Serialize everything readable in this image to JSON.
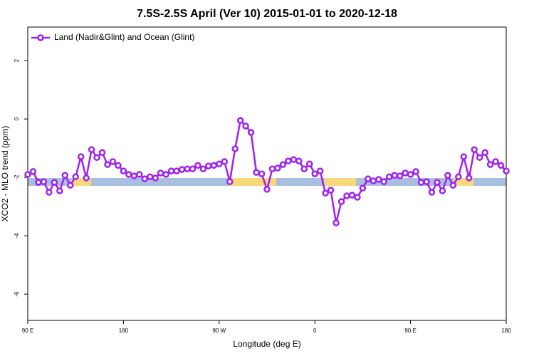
{
  "chart_data": {
    "type": "line",
    "title": "7.5S-2.5S April (Ver 10)   2015-01-01 to 2020-12-18",
    "xlabel": "Longitude (deg E)",
    "ylabel": "XCO2 - MLO trend (ppm)",
    "legend": "top-left",
    "xlim": [
      90,
      540
    ],
    "xticks": [
      {
        "value": 90,
        "label": "90 E"
      },
      180,
      {
        "value": 270,
        "label": "90 W"
      },
      {
        "value": 360,
        "label": "0"
      },
      {
        "value": 450,
        "label": "90 E"
      },
      {
        "value": 540,
        "label": "180"
      }
    ],
    "ylim": [
      -6.9,
      3.15
    ],
    "yticks": [
      2,
      0,
      -2,
      -4,
      -6
    ],
    "x": [
      90,
      95,
      100,
      105,
      110,
      115,
      120,
      125,
      130,
      135,
      140,
      145,
      150,
      155,
      160,
      165,
      170,
      175,
      180,
      185,
      190,
      195,
      200,
      205,
      210,
      215,
      220,
      225,
      230,
      235,
      240,
      245,
      250,
      255,
      260,
      265,
      270,
      275,
      280,
      285,
      290,
      295,
      300,
      305,
      310,
      315,
      320,
      325,
      330,
      335,
      340,
      345,
      350,
      355,
      360,
      365,
      370,
      375,
      380,
      385,
      390,
      395,
      400,
      405,
      410,
      415,
      420,
      425,
      430,
      435,
      440,
      445,
      450,
      455,
      460,
      465,
      470,
      475,
      480,
      485,
      490,
      495,
      500,
      505,
      510,
      515,
      520,
      525,
      530,
      535,
      540
    ],
    "series": [
      {
        "name": "Land (Nadir&Glint) and Ocean (Glint)",
        "color": "#a020f0",
        "values": [
          -1.9,
          -1.8,
          -2.17,
          -2.15,
          -2.51,
          -2.17,
          -2.46,
          -1.93,
          -2.27,
          -1.98,
          -1.29,
          -2.02,
          -1.05,
          -1.32,
          -1.15,
          -1.56,
          -1.46,
          -1.59,
          -1.78,
          -1.9,
          -1.95,
          -1.9,
          -2.05,
          -1.98,
          -2.02,
          -1.85,
          -1.9,
          -1.78,
          -1.78,
          -1.73,
          -1.71,
          -1.71,
          -1.59,
          -1.71,
          -1.61,
          -1.59,
          -1.54,
          -1.46,
          -2.15,
          -1.02,
          -0.05,
          -0.24,
          -0.46,
          -1.83,
          -1.88,
          -2.41,
          -1.71,
          -1.68,
          -1.56,
          -1.44,
          -1.39,
          -1.44,
          -1.71,
          -1.54,
          -1.88,
          -1.78,
          -2.54,
          -2.44,
          -3.56,
          -2.83,
          -2.63,
          -2.61,
          -2.68,
          -2.37,
          -2.05,
          -2.12,
          -2.07,
          -2.15,
          -1.98,
          -1.93,
          -1.95,
          -1.85,
          -1.9,
          -1.8,
          -2.17,
          -2.15,
          -2.51,
          -2.17,
          -2.46,
          -1.93,
          -2.27,
          -1.98,
          -1.29,
          -2.02,
          -1.05,
          -1.32,
          -1.15,
          -1.56,
          -1.46,
          -1.59,
          -1.78
        ]
      }
    ]
  }
}
